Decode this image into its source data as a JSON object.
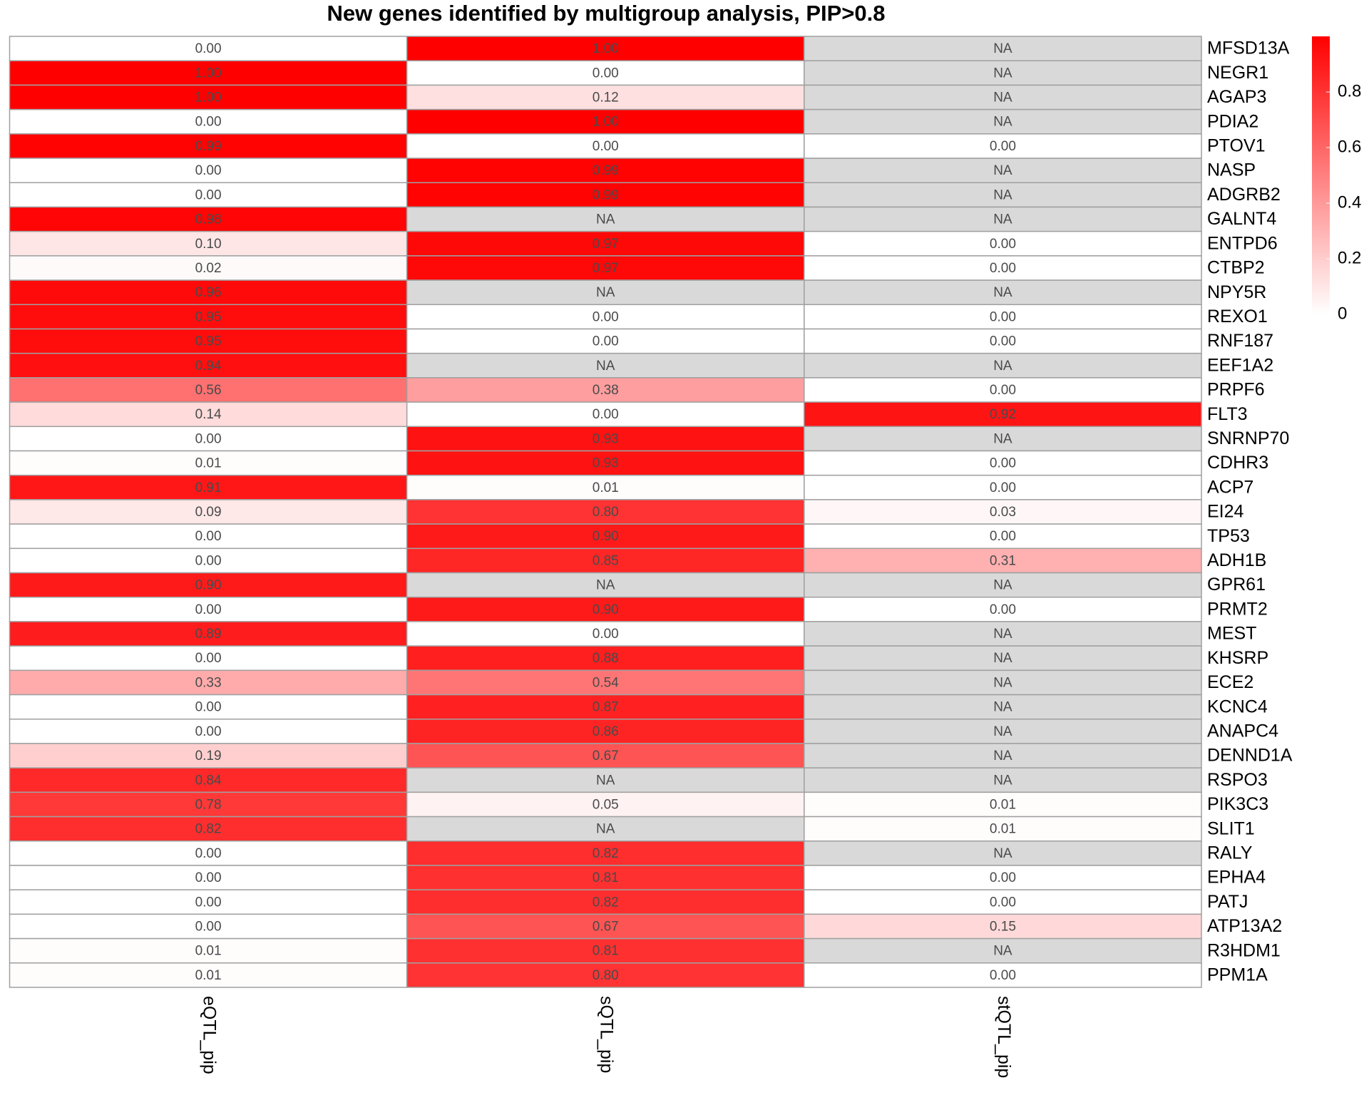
{
  "chart_data": {
    "type": "heatmap",
    "title": "New genes identified by multigroup analysis, PIP>0.8",
    "x": [
      "eQTL_pip",
      "sQTL_pip",
      "stQTL_pip"
    ],
    "y": [
      "MFSD13A",
      "NEGR1",
      "AGAP3",
      "PDIA2",
      "PTOV1",
      "NASP",
      "ADGRB2",
      "GALNT4",
      "ENTPD6",
      "CTBP2",
      "NPY5R",
      "REXO1",
      "RNF187",
      "EEF1A2",
      "PRPF6",
      "FLT3",
      "SNRNP70",
      "CDHR3",
      "ACP7",
      "EI24",
      "TP53",
      "ADH1B",
      "GPR61",
      "PRMT2",
      "MEST",
      "KHSRP",
      "ECE2",
      "KCNC4",
      "ANAPC4",
      "DENND1A",
      "RSPO3",
      "PIK3C3",
      "SLIT1",
      "RALY",
      "EPHA4",
      "PATJ",
      "ATP13A2",
      "R3HDM1",
      "PPM1A"
    ],
    "values": [
      [
        0,
        1,
        null
      ],
      [
        1,
        0,
        null
      ],
      [
        1,
        0.12,
        null
      ],
      [
        0,
        1,
        null
      ],
      [
        0.99,
        0,
        0
      ],
      [
        0,
        0.99,
        null
      ],
      [
        0,
        0.99,
        null
      ],
      [
        0.98,
        null,
        null
      ],
      [
        0.1,
        0.97,
        0
      ],
      [
        0.02,
        0.97,
        0
      ],
      [
        0.96,
        null,
        null
      ],
      [
        0.95,
        0,
        0
      ],
      [
        0.95,
        0,
        0
      ],
      [
        0.94,
        null,
        null
      ],
      [
        0.56,
        0.38,
        0
      ],
      [
        0.14,
        0,
        0.92
      ],
      [
        0,
        0.93,
        null
      ],
      [
        0.01,
        0.93,
        0
      ],
      [
        0.91,
        0.01,
        0
      ],
      [
        0.09,
        0.8,
        0.03
      ],
      [
        0,
        0.9,
        0
      ],
      [
        0,
        0.85,
        0.31
      ],
      [
        0.9,
        null,
        null
      ],
      [
        0,
        0.9,
        0
      ],
      [
        0.89,
        0,
        null
      ],
      [
        0,
        0.88,
        null
      ],
      [
        0.33,
        0.54,
        null
      ],
      [
        0,
        0.87,
        null
      ],
      [
        0,
        0.86,
        null
      ],
      [
        0.19,
        0.67,
        null
      ],
      [
        0.84,
        null,
        null
      ],
      [
        0.78,
        0.05,
        0.01
      ],
      [
        0.82,
        null,
        0.01
      ],
      [
        0,
        0.82,
        null
      ],
      [
        0,
        0.81,
        0
      ],
      [
        0,
        0.82,
        0
      ],
      [
        0,
        0.67,
        0.15
      ],
      [
        0.01,
        0.81,
        null
      ],
      [
        0.01,
        0.8,
        0
      ]
    ],
    "value_labels": [
      [
        "0.00",
        "1.00",
        "NA"
      ],
      [
        "1.00",
        "0.00",
        "NA"
      ],
      [
        "1.00",
        "0.12",
        "NA"
      ],
      [
        "0.00",
        "1.00",
        "NA"
      ],
      [
        "0.99",
        "0.00",
        "0.00"
      ],
      [
        "0.00",
        "0.99",
        "NA"
      ],
      [
        "0.00",
        "0.99",
        "NA"
      ],
      [
        "0.98",
        "NA",
        "NA"
      ],
      [
        "0.10",
        "0.97",
        "0.00"
      ],
      [
        "0.02",
        "0.97",
        "0.00"
      ],
      [
        "0.96",
        "NA",
        "NA"
      ],
      [
        "0.95",
        "0.00",
        "0.00"
      ],
      [
        "0.95",
        "0.00",
        "0.00"
      ],
      [
        "0.94",
        "NA",
        "NA"
      ],
      [
        "0.56",
        "0.38",
        "0.00"
      ],
      [
        "0.14",
        "0.00",
        "0.92"
      ],
      [
        "0.00",
        "0.93",
        "NA"
      ],
      [
        "0.01",
        "0.93",
        "0.00"
      ],
      [
        "0.91",
        "0.01",
        "0.00"
      ],
      [
        "0.09",
        "0.80",
        "0.03"
      ],
      [
        "0.00",
        "0.90",
        "0.00"
      ],
      [
        "0.00",
        "0.85",
        "0.31"
      ],
      [
        "0.90",
        "NA",
        "NA"
      ],
      [
        "0.00",
        "0.90",
        "0.00"
      ],
      [
        "0.89",
        "0.00",
        "NA"
      ],
      [
        "0.00",
        "0.88",
        "NA"
      ],
      [
        "0.33",
        "0.54",
        "NA"
      ],
      [
        "0.00",
        "0.87",
        "NA"
      ],
      [
        "0.00",
        "0.86",
        "NA"
      ],
      [
        "0.19",
        "0.67",
        "NA"
      ],
      [
        "0.84",
        "NA",
        "NA"
      ],
      [
        "0.78",
        "0.05",
        "0.01"
      ],
      [
        "0.82",
        "NA",
        "0.01"
      ],
      [
        "0.00",
        "0.82",
        "NA"
      ],
      [
        "0.00",
        "0.81",
        "0.00"
      ],
      [
        "0.00",
        "0.82",
        "0.00"
      ],
      [
        "0.00",
        "0.67",
        "0.15"
      ],
      [
        "0.01",
        "0.81",
        "NA"
      ],
      [
        "0.01",
        "0.80",
        "0.00"
      ]
    ],
    "colorlim": [
      0,
      1
    ],
    "colorticks": [
      0,
      0.2,
      0.4,
      0.6,
      0.8
    ],
    "low_color": "#ffffff",
    "high_color": "#ff0000",
    "na_color": "#d9d9d9",
    "border_color": "#a0a0a0"
  }
}
